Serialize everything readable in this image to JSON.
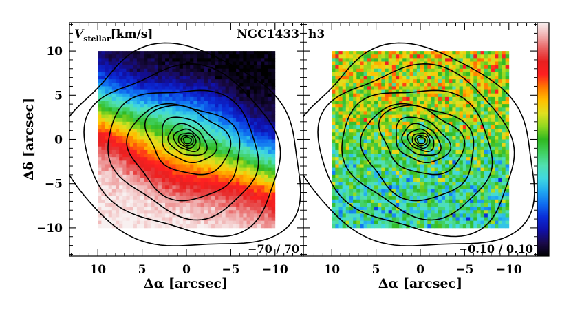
{
  "chart_data": [
    {
      "type": "heatmap",
      "panel": "left",
      "quantity": "V_stellar",
      "label_main": "V",
      "label_sub": "stellar",
      "label_units": "[km/s]",
      "galaxy": "NGC1433",
      "range_label": "−70 / 70",
      "vmin": -70,
      "vmax": 70,
      "pattern": "velocity gradient: blue (approaching) toward north-east/top, red (receding) toward south/bottom-right",
      "map_extent": {
        "x": [
          10,
          -10
        ],
        "y": [
          -10,
          10
        ]
      },
      "xlim": [
        13.2,
        -13.2
      ],
      "ylim": [
        -13.2,
        13.2
      ],
      "xticks": [
        10,
        5,
        0,
        -5,
        -10
      ],
      "yticks": [
        10,
        5,
        0,
        -5,
        -10
      ],
      "xtick_labels": [
        "10",
        "5",
        "0",
        "−5",
        "−10"
      ],
      "ytick_labels": [
        "10",
        "5",
        "0",
        "−5",
        "−10"
      ],
      "xlabel": "Δα [arcsec]",
      "ylabel": "Δδ [arcsec]",
      "contours": "isophotes centered near (0, 0)"
    },
    {
      "type": "heatmap",
      "panel": "right",
      "quantity": "h3",
      "label_main": "h3",
      "range_label": "−0.10 / 0.10",
      "vmin": -0.1,
      "vmax": 0.1,
      "pattern": "noisy map; mostly green-cyan, higher values in the north, lower (blue) values in the south",
      "map_extent": {
        "x": [
          10,
          -10
        ],
        "y": [
          -10,
          10
        ]
      },
      "xlim": [
        13.2,
        -13.2
      ],
      "ylim": [
        -13.2,
        13.2
      ],
      "xticks": [
        10,
        5,
        0,
        -5,
        -10
      ],
      "xtick_labels": [
        "10",
        "5",
        "0",
        "−5",
        "−10"
      ],
      "xlabel": "Δα [arcsec]",
      "contours": "isophotes centered near (0, 0)"
    }
  ],
  "colorbar": {
    "colors": [
      "#000000",
      "#1a0a4a",
      "#1010a8",
      "#0a2cd8",
      "#0f6cf0",
      "#20a8f0",
      "#40d8e0",
      "#50e0b0",
      "#40d060",
      "#30b820",
      "#90d820",
      "#e0e020",
      "#ffc000",
      "#ff7a00",
      "#ff2020",
      "#e82020",
      "#e86060",
      "#f0b0b0",
      "#f8f0f0"
    ]
  },
  "contours": {
    "levels": [
      0.45,
      0.7,
      1.0,
      1.45,
      2.1,
      3.0,
      4.6,
      6.4,
      8.6,
      11.2,
      13.6
    ],
    "color": "#000000"
  }
}
